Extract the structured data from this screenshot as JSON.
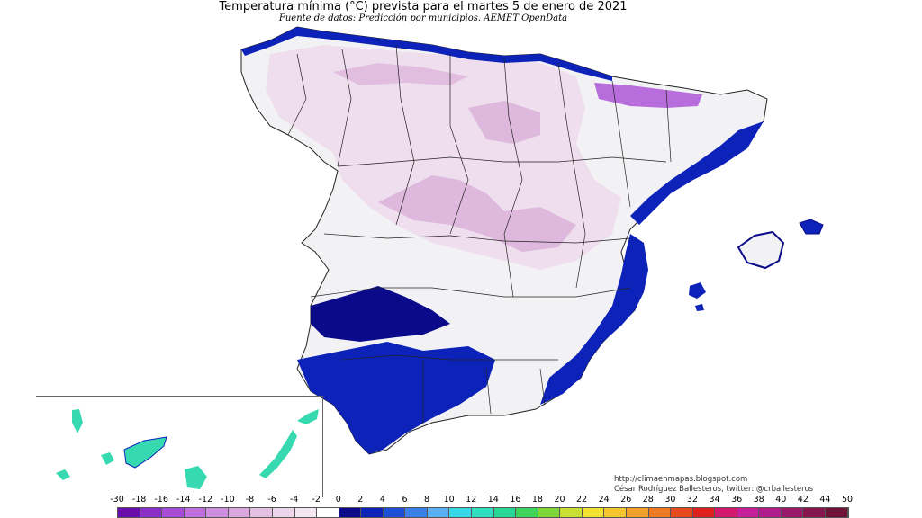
{
  "title": "Temperatura mínima (°C) prevista para el martes 5 de enero de 2021",
  "subtitle": "Fuente de datos: Predicción por municipios. AEMET OpenData",
  "credits": {
    "url": "http://climaenmapas.blogspot.com",
    "author": "César Rodríguez Ballesteros, twitter: @crballesteros"
  },
  "legend": {
    "ticks": [
      "-30",
      "-18",
      "-16",
      "-14",
      "-12",
      "-10",
      "-8",
      "-6",
      "-4",
      "-2",
      "0",
      "2",
      "4",
      "6",
      "8",
      "10",
      "12",
      "14",
      "16",
      "18",
      "20",
      "22",
      "24",
      "26",
      "28",
      "30",
      "32",
      "34",
      "36",
      "38",
      "40",
      "42",
      "44",
      "50"
    ],
    "colors": [
      "#6a0dad",
      "#8b2fc9",
      "#a84bd6",
      "#c06fdc",
      "#cf8fe0",
      "#d9a8df",
      "#e3c0e3",
      "#ecd4ea",
      "#f3e6f1",
      "#ffffff",
      "#0a0a8a",
      "#0c22b8",
      "#1d4fd8",
      "#3d7fe8",
      "#5fb0f2",
      "#37d9e8",
      "#2ee0c0",
      "#26d996",
      "#3fd45c",
      "#7ed838",
      "#c9e032",
      "#f2e12f",
      "#f5c52c",
      "#f2a227",
      "#ee7a22",
      "#e8481f",
      "#e0201c",
      "#d4186e",
      "#c81e9c",
      "#b01c8c",
      "#9a1a6a",
      "#851650",
      "#6e1238"
    ]
  },
  "colors": {
    "sea": "#ffffff",
    "land_cold": "#eedcec",
    "land_colder": "#d7a8d6",
    "land_neutral": "#f2f2f4",
    "land_warm_coast": "#0c22b8",
    "land_warm_deep": "#0a0a8a",
    "canary_land": "#37d9b0",
    "borders": "#222222"
  }
}
